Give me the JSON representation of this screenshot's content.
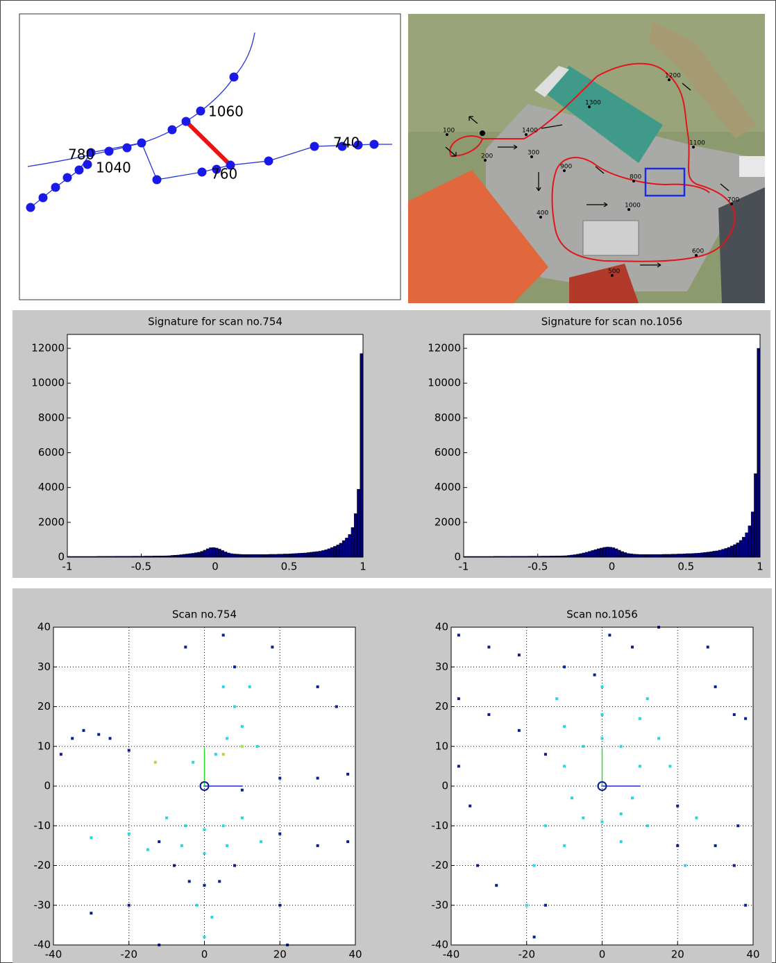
{
  "trajectory": {
    "labels": [
      "1060",
      "780",
      "1040",
      "740",
      "760"
    ]
  },
  "map": {
    "labels": [
      "100",
      "200",
      "300",
      "400",
      "500",
      "600",
      "700",
      "800",
      "900",
      "1000",
      "1100",
      "1200",
      "1300",
      "1400"
    ]
  },
  "chart_data": [
    {
      "type": "histogram",
      "title": "Signature for scan no.754",
      "color": "#000080",
      "bins": [
        -1,
        -0.98,
        -0.96,
        -0.94,
        -0.92,
        -0.9,
        -0.88,
        -0.86,
        -0.84,
        -0.82,
        -0.8,
        -0.78,
        -0.76,
        -0.74,
        -0.72,
        -0.7,
        -0.68,
        -0.66,
        -0.64,
        -0.62,
        -0.6,
        -0.58,
        -0.56,
        -0.54,
        -0.52,
        -0.5,
        -0.48,
        -0.46,
        -0.44,
        -0.42,
        -0.4,
        -0.38,
        -0.36,
        -0.34,
        -0.32,
        -0.3,
        -0.28,
        -0.26,
        -0.24,
        -0.22,
        -0.2,
        -0.18,
        -0.16,
        -0.14,
        -0.12,
        -0.1,
        -0.08,
        -0.06,
        -0.04,
        -0.02,
        0,
        0.02,
        0.04,
        0.06,
        0.08,
        0.1,
        0.12,
        0.14,
        0.16,
        0.18,
        0.2,
        0.22,
        0.24,
        0.26,
        0.28,
        0.3,
        0.32,
        0.34,
        0.36,
        0.38,
        0.4,
        0.42,
        0.44,
        0.46,
        0.48,
        0.5,
        0.52,
        0.54,
        0.56,
        0.58,
        0.6,
        0.62,
        0.64,
        0.66,
        0.68,
        0.7,
        0.72,
        0.74,
        0.76,
        0.78,
        0.8,
        0.82,
        0.84,
        0.86,
        0.88,
        0.9,
        0.92,
        0.94,
        0.96,
        0.98,
        1
      ],
      "values": [
        40,
        40,
        40,
        40,
        40,
        40,
        40,
        40,
        40,
        40,
        45,
        45,
        45,
        45,
        45,
        45,
        50,
        50,
        50,
        50,
        50,
        50,
        55,
        55,
        55,
        55,
        60,
        60,
        60,
        65,
        65,
        70,
        70,
        75,
        80,
        100,
        110,
        120,
        140,
        160,
        180,
        200,
        220,
        250,
        280,
        330,
        400,
        480,
        540,
        550,
        520,
        460,
        380,
        300,
        240,
        200,
        180,
        170,
        160,
        150,
        150,
        150,
        150,
        150,
        150,
        150,
        150,
        150,
        160,
        160,
        160,
        170,
        170,
        180,
        180,
        190,
        200,
        210,
        220,
        230,
        240,
        260,
        280,
        300,
        320,
        340,
        380,
        420,
        480,
        550,
        620,
        700,
        800,
        950,
        1100,
        1300,
        1700,
        2500,
        3900,
        11700
      ],
      "xlim": [
        -1,
        1
      ],
      "xticks": [
        -1,
        -0.5,
        0,
        0.5,
        1
      ],
      "ylim": [
        0,
        12800
      ],
      "yticks": [
        0,
        2000,
        4000,
        6000,
        8000,
        10000,
        12000
      ],
      "grid": false
    },
    {
      "type": "histogram",
      "title": "Signature for scan no.1056",
      "color": "#000080",
      "bins": [
        -1,
        -0.98,
        -0.96,
        -0.94,
        -0.92,
        -0.9,
        -0.88,
        -0.86,
        -0.84,
        -0.82,
        -0.8,
        -0.78,
        -0.76,
        -0.74,
        -0.72,
        -0.7,
        -0.68,
        -0.66,
        -0.64,
        -0.62,
        -0.6,
        -0.58,
        -0.56,
        -0.54,
        -0.52,
        -0.5,
        -0.48,
        -0.46,
        -0.44,
        -0.42,
        -0.4,
        -0.38,
        -0.36,
        -0.34,
        -0.32,
        -0.3,
        -0.28,
        -0.26,
        -0.24,
        -0.22,
        -0.2,
        -0.18,
        -0.16,
        -0.14,
        -0.12,
        -0.1,
        -0.08,
        -0.06,
        -0.04,
        -0.02,
        0,
        0.02,
        0.04,
        0.06,
        0.08,
        0.1,
        0.12,
        0.14,
        0.16,
        0.18,
        0.2,
        0.22,
        0.24,
        0.26,
        0.28,
        0.3,
        0.32,
        0.34,
        0.36,
        0.38,
        0.4,
        0.42,
        0.44,
        0.46,
        0.48,
        0.5,
        0.52,
        0.54,
        0.56,
        0.58,
        0.6,
        0.62,
        0.64,
        0.66,
        0.68,
        0.7,
        0.72,
        0.74,
        0.76,
        0.78,
        0.8,
        0.82,
        0.84,
        0.86,
        0.88,
        0.9,
        0.92,
        0.94,
        0.96,
        0.98,
        1
      ],
      "values": [
        40,
        40,
        40,
        40,
        40,
        40,
        40,
        40,
        40,
        40,
        45,
        45,
        45,
        45,
        45,
        45,
        50,
        50,
        50,
        50,
        50,
        50,
        55,
        55,
        55,
        55,
        60,
        60,
        60,
        65,
        65,
        70,
        70,
        75,
        80,
        100,
        120,
        140,
        170,
        200,
        240,
        280,
        330,
        380,
        430,
        480,
        520,
        560,
        580,
        570,
        540,
        480,
        400,
        320,
        260,
        210,
        190,
        170,
        160,
        150,
        150,
        150,
        150,
        150,
        150,
        150,
        150,
        160,
        160,
        160,
        170,
        170,
        180,
        180,
        190,
        200,
        200,
        210,
        220,
        230,
        250,
        270,
        290,
        310,
        340,
        360,
        400,
        450,
        500,
        560,
        640,
        720,
        820,
        960,
        1150,
        1400,
        1800,
        2600,
        4800,
        12000
      ],
      "xlim": [
        -1,
        1
      ],
      "xticks": [
        -1,
        -0.5,
        0,
        0.5,
        1
      ],
      "ylim": [
        0,
        12800
      ],
      "yticks": [
        0,
        2000,
        4000,
        6000,
        8000,
        10000,
        12000
      ],
      "grid": false
    },
    {
      "type": "scatter",
      "title": "Scan no.754",
      "series": [
        {
          "color": "#0a1e8c",
          "x": [
            -38,
            -35,
            -32,
            -28,
            -25,
            -20,
            -12,
            -8,
            -4,
            0,
            4,
            8,
            20,
            30,
            38,
            10,
            20,
            30,
            38,
            -30,
            -20,
            -12,
            20,
            22,
            5,
            8,
            18,
            30,
            35,
            -5
          ],
          "y": [
            8,
            12,
            14,
            13,
            12,
            9,
            -14,
            -20,
            -24,
            -25,
            -24,
            -20,
            -12,
            -15,
            -14,
            -1,
            2,
            2,
            3,
            -32,
            -30,
            -40,
            -30,
            -40,
            38,
            30,
            35,
            25,
            20,
            35
          ]
        },
        {
          "color": "#2ad4e0",
          "x": [
            -10,
            -5,
            0,
            5,
            10,
            -6,
            0,
            6,
            -3,
            3,
            6,
            10,
            14,
            8,
            -2,
            2,
            -15,
            15,
            0,
            5,
            12,
            -30,
            -20
          ],
          "y": [
            -8,
            -10,
            -11,
            -10,
            -8,
            -15,
            -17,
            -15,
            6,
            8,
            12,
            15,
            10,
            20,
            -30,
            -33,
            -16,
            -14,
            -38,
            25,
            25,
            -13,
            -12
          ]
        },
        {
          "color": "#a0e040",
          "x": [
            5,
            10,
            -13
          ],
          "y": [
            8,
            10,
            6
          ]
        }
      ],
      "xlim": [
        -40,
        40
      ],
      "xticks": [
        -40,
        -20,
        0,
        20,
        40
      ],
      "ylim": [
        -40,
        40
      ],
      "yticks": [
        -40,
        -30,
        -20,
        -10,
        0,
        10,
        20,
        30,
        40
      ],
      "grid": true
    },
    {
      "type": "scatter",
      "title": "Scan no.1056",
      "series": [
        {
          "color": "#0a1e8c",
          "x": [
            -38,
            -30,
            -22,
            -10,
            -2,
            2,
            8,
            15,
            28,
            30,
            35,
            38,
            -38,
            -30,
            -22,
            -15,
            -35,
            -33,
            -28,
            -15,
            -18,
            20,
            30,
            35,
            38,
            20,
            -38,
            36
          ],
          "y": [
            38,
            35,
            33,
            30,
            28,
            38,
            35,
            40,
            35,
            25,
            18,
            17,
            22,
            18,
            14,
            8,
            -5,
            -20,
            -25,
            -30,
            -38,
            -5,
            -15,
            -20,
            -30,
            -15,
            5,
            -10
          ]
        },
        {
          "color": "#2ad4e0",
          "x": [
            -8,
            -5,
            0,
            5,
            8,
            -10,
            -5,
            0,
            5,
            10,
            -10,
            0,
            10,
            15,
            -15,
            -18,
            -20,
            -10,
            5,
            12,
            -12,
            12,
            0,
            18,
            25,
            22
          ],
          "y": [
            -3,
            -8,
            -9,
            -7,
            -3,
            5,
            10,
            12,
            10,
            5,
            15,
            18,
            17,
            12,
            -10,
            -20,
            -30,
            -15,
            -14,
            -10,
            22,
            22,
            25,
            5,
            -8,
            -20
          ]
        }
      ],
      "xlim": [
        -40,
        40
      ],
      "xticks": [
        -40,
        -20,
        0,
        20,
        40
      ],
      "ylim": [
        -40,
        40
      ],
      "yticks": [
        -40,
        -30,
        -20,
        -10,
        0,
        10,
        20,
        30,
        40
      ],
      "grid": true
    }
  ]
}
